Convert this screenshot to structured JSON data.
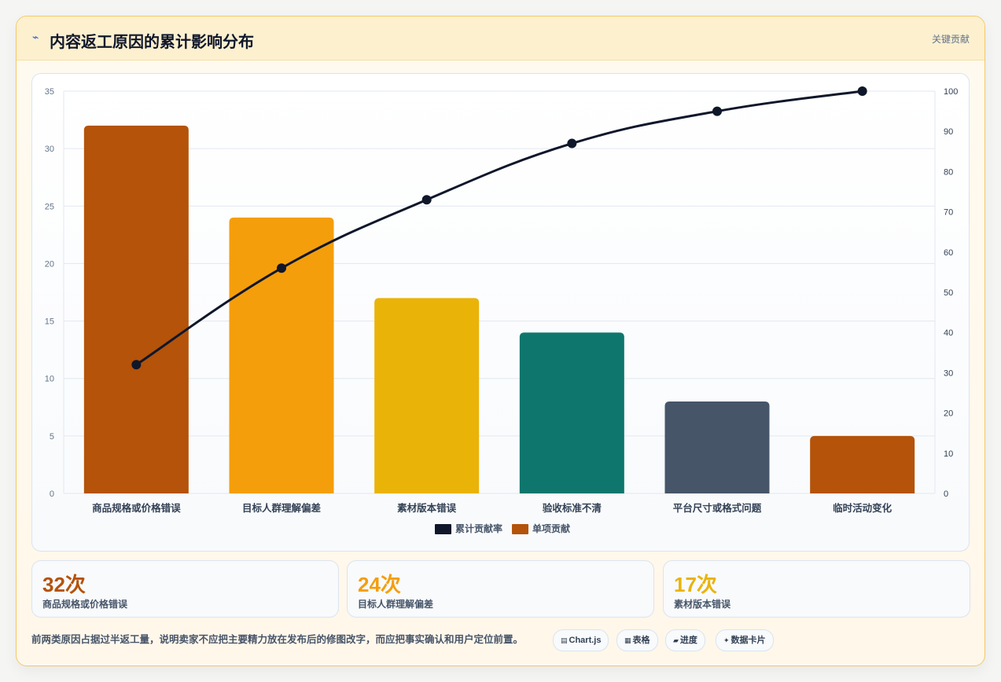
{
  "header": {
    "icon": "chart-icon",
    "title": "内容返工原因的累计影响分布",
    "tag": "关键贡献"
  },
  "chart_data": {
    "type": "bar",
    "categories": [
      "商品规格或价格错误",
      "目标人群理解偏差",
      "素材版本错误",
      "验收标准不清",
      "平台尺寸或格式问题",
      "临时活动变化"
    ],
    "series": [
      {
        "name": "单项贡献",
        "type": "bar",
        "axis": "left",
        "values": [
          32,
          24,
          17,
          14,
          8,
          5
        ],
        "colors": [
          "#b45309",
          "#f59e0b",
          "#eab308",
          "#0f766e",
          "#475569",
          "#b45309"
        ]
      },
      {
        "name": "累计贡献率",
        "type": "line",
        "axis": "right",
        "values": [
          32,
          56,
          73,
          87,
          95,
          100
        ],
        "color": "#0f172a"
      }
    ],
    "ylim_left": [
      0,
      35
    ],
    "yticks_left": [
      0,
      5,
      10,
      15,
      20,
      25,
      30,
      35
    ],
    "ylim_right": [
      0,
      100
    ],
    "yticks_right": [
      0,
      10,
      20,
      30,
      40,
      50,
      60,
      70,
      80,
      90,
      100
    ],
    "legend": {
      "position": "bottom",
      "items": [
        {
          "label": "累计贡献率",
          "color": "#0f172a"
        },
        {
          "label": "单项贡献",
          "color": "#b45309"
        }
      ]
    },
    "grid": true
  },
  "stats": [
    {
      "value": "32次",
      "label": "商品规格或价格错误",
      "color": "#b45309"
    },
    {
      "value": "24次",
      "label": "目标人群理解偏差",
      "color": "#f59e0b"
    },
    {
      "value": "17次",
      "label": "素材版本错误",
      "color": "#eab308"
    }
  ],
  "footnote": "前两类原因占据过半返工量，说明卖家不应把主要精力放在发布后的修图改字，而应把事实确认和用户定位前置。",
  "chips": [
    {
      "icon": "chart-icon",
      "glyph": "▤",
      "label": "Chart.js"
    },
    {
      "icon": "table-icon",
      "glyph": "▦",
      "label": "表格"
    },
    {
      "icon": "progress-icon",
      "glyph": "▰",
      "label": "进度"
    },
    {
      "icon": "data-card-icon",
      "glyph": "✦",
      "label": "数据卡片"
    }
  ]
}
